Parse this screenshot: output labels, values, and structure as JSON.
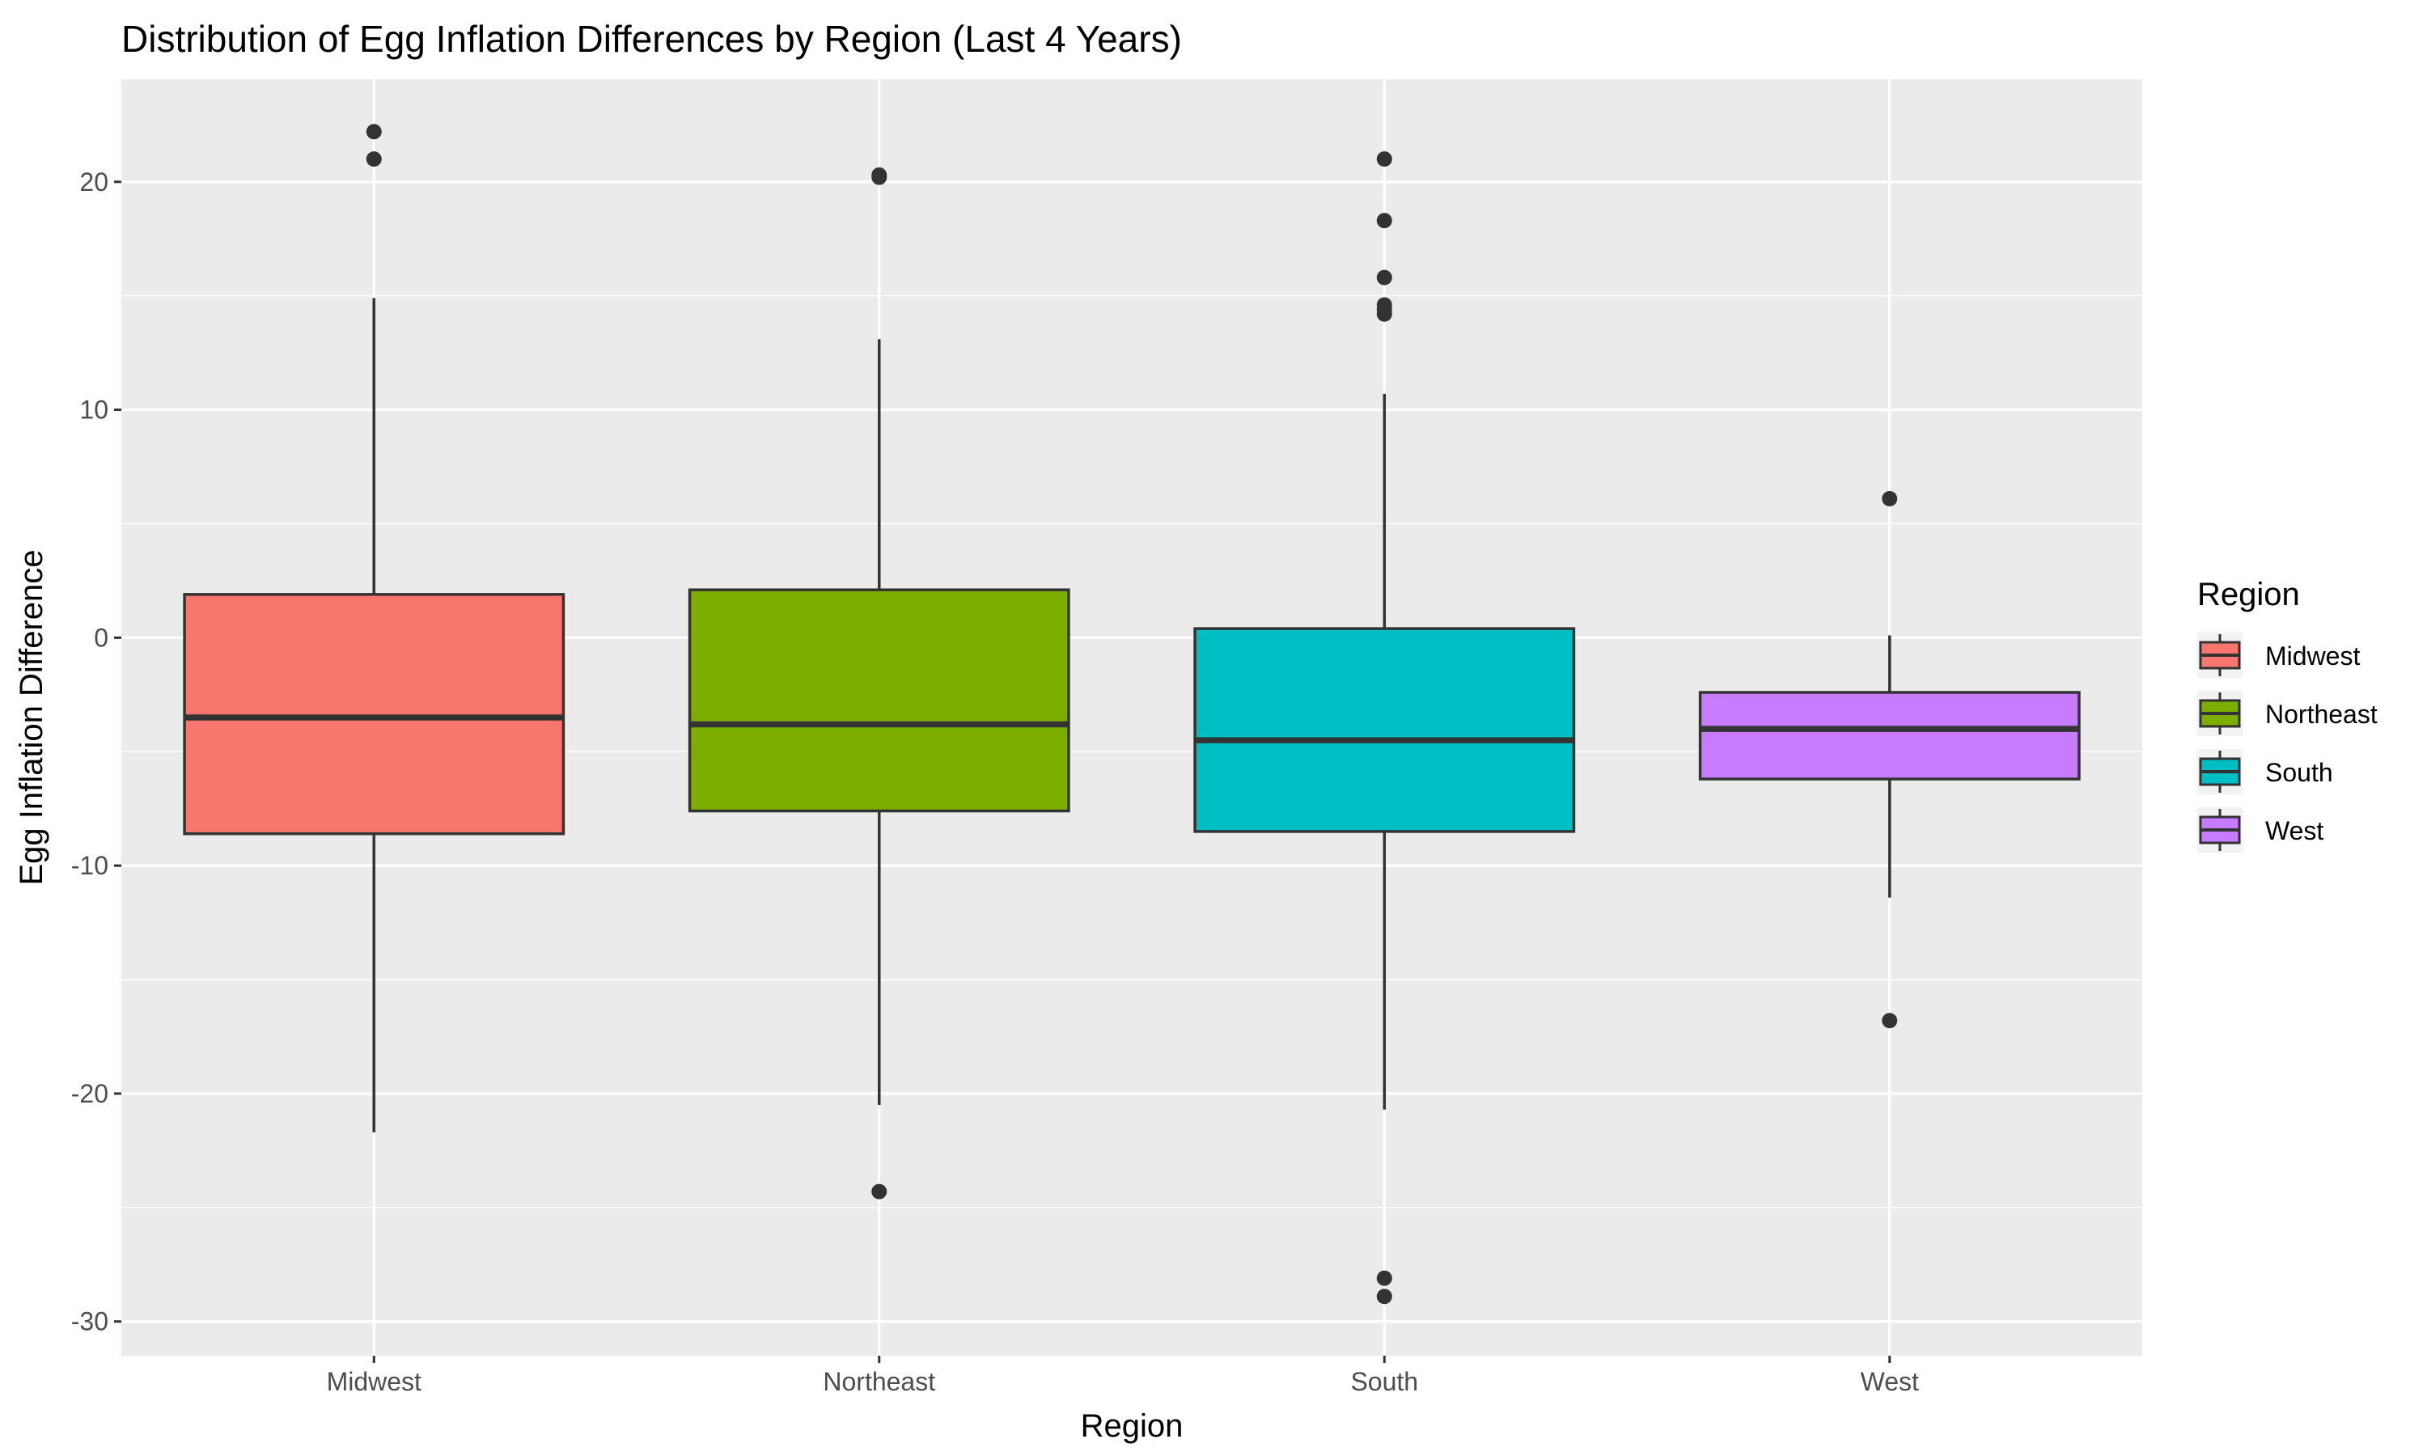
{
  "chart_data": {
    "type": "boxplot",
    "title": "Distribution of Egg Inflation Differences by Region (Last 4 Years)",
    "xlabel": "Region",
    "ylabel": "Egg Inflation Difference",
    "ylim": [
      -31.5,
      24.5
    ],
    "yticks": [
      -30,
      -20,
      -10,
      0,
      10,
      20
    ],
    "ytick_labels": [
      "-30",
      "-20",
      "-10",
      "0",
      "10",
      "20"
    ],
    "categories": [
      "Midwest",
      "Northeast",
      "South",
      "West"
    ],
    "grid": true,
    "legend": {
      "title": "Region",
      "position": "right",
      "entries": [
        "Midwest",
        "Northeast",
        "South",
        "West"
      ]
    },
    "colors": {
      "Midwest": "#F8766D",
      "Northeast": "#7CAE00",
      "South": "#00BFC4",
      "West": "#C77CFF"
    },
    "series": [
      {
        "category": "Midwest",
        "whisker_low": -21.7,
        "q1": -8.6,
        "median": -3.5,
        "q3": 1.9,
        "whisker_high": 14.9,
        "outliers": [
          22.2,
          21.0
        ]
      },
      {
        "category": "Northeast",
        "whisker_low": -20.5,
        "q1": -7.6,
        "median": -3.8,
        "q3": 2.1,
        "whisker_high": 13.1,
        "outliers": [
          20.3,
          20.2,
          -24.3
        ]
      },
      {
        "category": "South",
        "whisker_low": -20.7,
        "q1": -8.5,
        "median": -4.5,
        "q3": 0.4,
        "whisker_high": 10.7,
        "outliers": [
          21.0,
          18.3,
          15.8,
          14.6,
          14.4,
          14.2,
          -28.1,
          -28.9
        ]
      },
      {
        "category": "West",
        "whisker_low": -11.4,
        "q1": -6.2,
        "median": -4.0,
        "q3": -2.4,
        "whisker_high": 0.1,
        "outliers": [
          6.1,
          -16.8
        ]
      }
    ]
  }
}
